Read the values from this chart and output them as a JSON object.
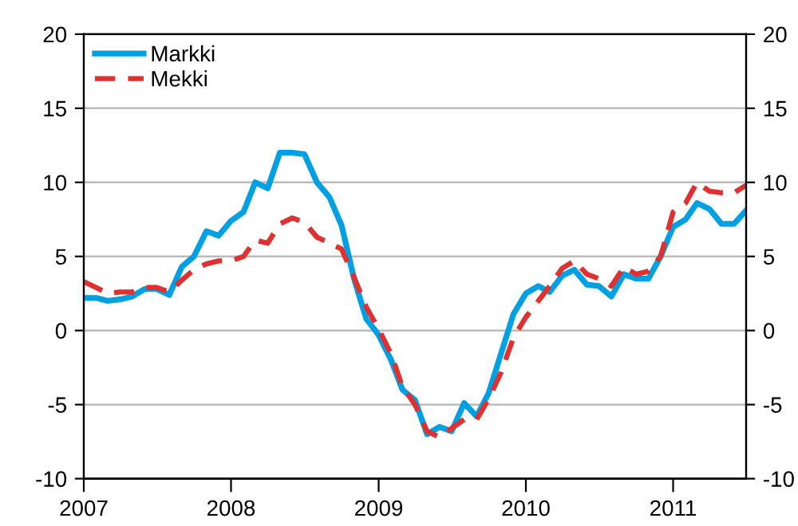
{
  "chart_data": {
    "type": "line",
    "x": [
      "2007-01",
      "2007-02",
      "2007-03",
      "2007-04",
      "2007-05",
      "2007-06",
      "2007-07",
      "2007-08",
      "2007-09",
      "2007-10",
      "2007-11",
      "2007-12",
      "2008-01",
      "2008-02",
      "2008-03",
      "2008-04",
      "2008-05",
      "2008-06",
      "2008-07",
      "2008-08",
      "2008-09",
      "2008-10",
      "2008-11",
      "2008-12",
      "2009-01",
      "2009-02",
      "2009-03",
      "2009-04",
      "2009-05",
      "2009-06",
      "2009-07",
      "2009-08",
      "2009-09",
      "2009-10",
      "2009-11",
      "2009-12",
      "2010-01",
      "2010-02",
      "2010-03",
      "2010-04",
      "2010-05",
      "2010-06",
      "2010-07",
      "2010-08",
      "2010-09",
      "2010-10",
      "2010-11",
      "2010-12",
      "2011-01",
      "2011-02",
      "2011-03",
      "2011-04",
      "2011-05",
      "2011-06",
      "2011-07"
    ],
    "series": [
      {
        "name": "Markki",
        "color": "#00a0e3",
        "line_style": "solid",
        "values": [
          2.2,
          2.2,
          2.0,
          2.1,
          2.3,
          2.8,
          2.8,
          2.4,
          4.3,
          5.0,
          6.7,
          6.4,
          7.4,
          8.0,
          10.0,
          9.6,
          12.0,
          12.0,
          11.9,
          10.0,
          9.0,
          7.1,
          3.5,
          0.8,
          -0.3,
          -2.0,
          -4.0,
          -4.7,
          -7.0,
          -6.5,
          -6.8,
          -4.9,
          -5.8,
          -4.2,
          -1.5,
          1.1,
          2.5,
          3.0,
          2.6,
          3.7,
          4.1,
          3.1,
          3.0,
          2.3,
          3.8,
          3.5,
          3.5,
          5.0,
          7.0,
          7.5,
          8.6,
          8.2,
          7.2,
          7.2,
          8.1
        ]
      },
      {
        "name": "Mekki",
        "color": "#e03030",
        "line_style": "dashed",
        "values": [
          3.3,
          2.9,
          2.5,
          2.6,
          2.6,
          2.9,
          2.9,
          2.6,
          3.4,
          4.1,
          4.5,
          4.7,
          4.7,
          5.0,
          6.1,
          5.9,
          7.2,
          7.6,
          7.3,
          6.3,
          5.9,
          5.5,
          3.6,
          1.6,
          0.1,
          -1.6,
          -3.8,
          -5.0,
          -6.8,
          -7.2,
          -6.6,
          -6.0,
          -6.0,
          -4.6,
          -2.8,
          -0.5,
          0.9,
          2.0,
          3.0,
          4.2,
          4.7,
          3.8,
          3.5,
          3.0,
          4.3,
          3.8,
          4.0,
          5.0,
          8.0,
          8.6,
          10.0,
          9.4,
          9.3,
          9.3,
          9.8
        ]
      }
    ],
    "xlim": [
      "2007-01",
      "2011-07"
    ],
    "xticks": [
      {
        "value": "2007-01",
        "label": "2007"
      },
      {
        "value": "2008-01",
        "label": "2008"
      },
      {
        "value": "2009-01",
        "label": "2009"
      },
      {
        "value": "2010-01",
        "label": "2010"
      },
      {
        "value": "2011-01",
        "label": "2011"
      }
    ],
    "ylim": [
      -10,
      20
    ],
    "yticks": [
      -10,
      -5,
      0,
      5,
      10,
      15,
      20
    ],
    "y2lim": [
      -10,
      20
    ],
    "y2ticks": [
      -10,
      -5,
      0,
      5,
      10,
      15,
      20
    ],
    "grid": "y",
    "legend": "top left",
    "marker": "none"
  }
}
